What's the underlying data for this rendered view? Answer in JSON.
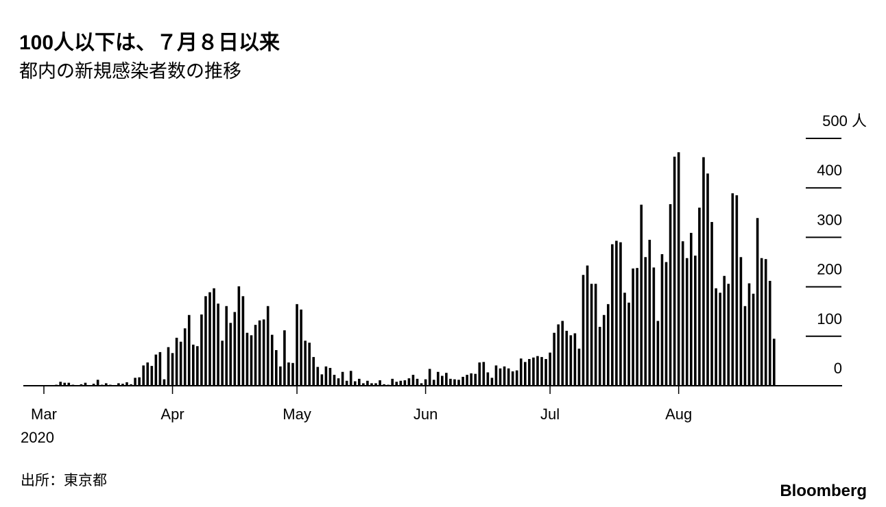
{
  "chart_data": {
    "type": "bar",
    "title": "100人以下は、７月８日以来",
    "subtitle": "都内の新規感染者数の推移",
    "source": "出所：東京都",
    "brand": "Bloomberg",
    "year_label": "2020",
    "color": "#000000",
    "categories": [
      "Mar",
      null,
      null,
      null,
      null,
      null,
      null,
      null,
      null,
      null,
      null,
      null,
      null,
      null,
      null,
      null,
      null,
      null,
      null,
      null,
      null,
      null,
      null,
      null,
      null,
      null,
      null,
      null,
      null,
      null,
      null,
      "Apr",
      null,
      null,
      null,
      null,
      null,
      null,
      null,
      null,
      null,
      null,
      null,
      null,
      null,
      null,
      null,
      null,
      null,
      null,
      null,
      null,
      null,
      null,
      null,
      null,
      null,
      null,
      null,
      null,
      null,
      "May",
      null,
      null,
      null,
      null,
      null,
      null,
      null,
      null,
      null,
      null,
      null,
      null,
      null,
      null,
      null,
      null,
      null,
      null,
      null,
      null,
      null,
      null,
      null,
      null,
      null,
      null,
      null,
      null,
      null,
      null,
      "Jun",
      null,
      null,
      null,
      null,
      null,
      null,
      null,
      null,
      null,
      null,
      null,
      null,
      null,
      null,
      null,
      null,
      null,
      null,
      null,
      null,
      null,
      null,
      null,
      null,
      null,
      null,
      null,
      null,
      null,
      "Jul",
      null,
      null,
      null,
      null,
      null,
      null,
      null,
      null,
      null,
      null,
      null,
      null,
      null,
      null,
      null,
      null,
      null,
      null,
      null,
      null,
      null,
      null,
      null,
      null,
      null,
      null,
      null,
      null,
      null,
      null,
      "Aug",
      null,
      null,
      null,
      null,
      null,
      null,
      null,
      null,
      null,
      null,
      null,
      null,
      null,
      null,
      null,
      null,
      null,
      null,
      null,
      null,
      null,
      null,
      null
    ],
    "values": [
      0,
      1,
      0,
      2,
      8,
      6,
      6,
      2,
      1,
      3,
      6,
      1,
      4,
      12,
      2,
      5,
      2,
      1,
      5,
      4,
      7,
      3,
      16,
      17,
      41,
      47,
      40,
      63,
      68,
      13,
      78,
      66,
      97,
      89,
      116,
      143,
      83,
      80,
      144,
      181,
      189,
      197,
      166,
      91,
      161,
      127,
      149,
      201,
      181,
      107,
      102,
      123,
      132,
      134,
      161,
      103,
      72,
      39,
      112,
      47,
      46,
      165,
      154,
      91,
      87,
      58,
      38,
      23,
      39,
      36,
      22,
      15,
      28,
      10,
      30,
      9,
      14,
      5,
      10,
      5,
      5,
      11,
      3,
      2,
      14,
      8,
      10,
      11,
      15,
      22,
      14,
      5,
      13,
      34,
      12,
      28,
      20,
      26,
      14,
      13,
      12,
      18,
      22,
      25,
      24,
      47,
      48,
      27,
      16,
      41,
      35,
      39,
      35,
      29,
      31,
      55,
      48,
      54,
      57,
      60,
      58,
      54,
      67,
      107,
      124,
      131,
      111,
      102,
      106,
      75,
      224,
      243,
      206,
      206,
      119,
      143,
      165,
      286,
      293,
      290,
      188,
      168,
      237,
      238,
      366,
      260,
      295,
      239,
      131,
      266,
      250,
      367,
      463,
      472,
      292,
      258,
      309,
      263,
      360,
      462,
      429,
      331,
      197,
      188,
      222,
      206,
      389,
      385,
      260,
      161,
      207,
      186,
      339,
      258,
      256,
      212,
      95
    ],
    "ylim": [
      0,
      500
    ],
    "yticks": [
      0,
      100,
      200,
      300,
      {
        "value": 400,
        "label": "400"
      },
      {
        "value": 500,
        "label": "500 人"
      }
    ]
  }
}
